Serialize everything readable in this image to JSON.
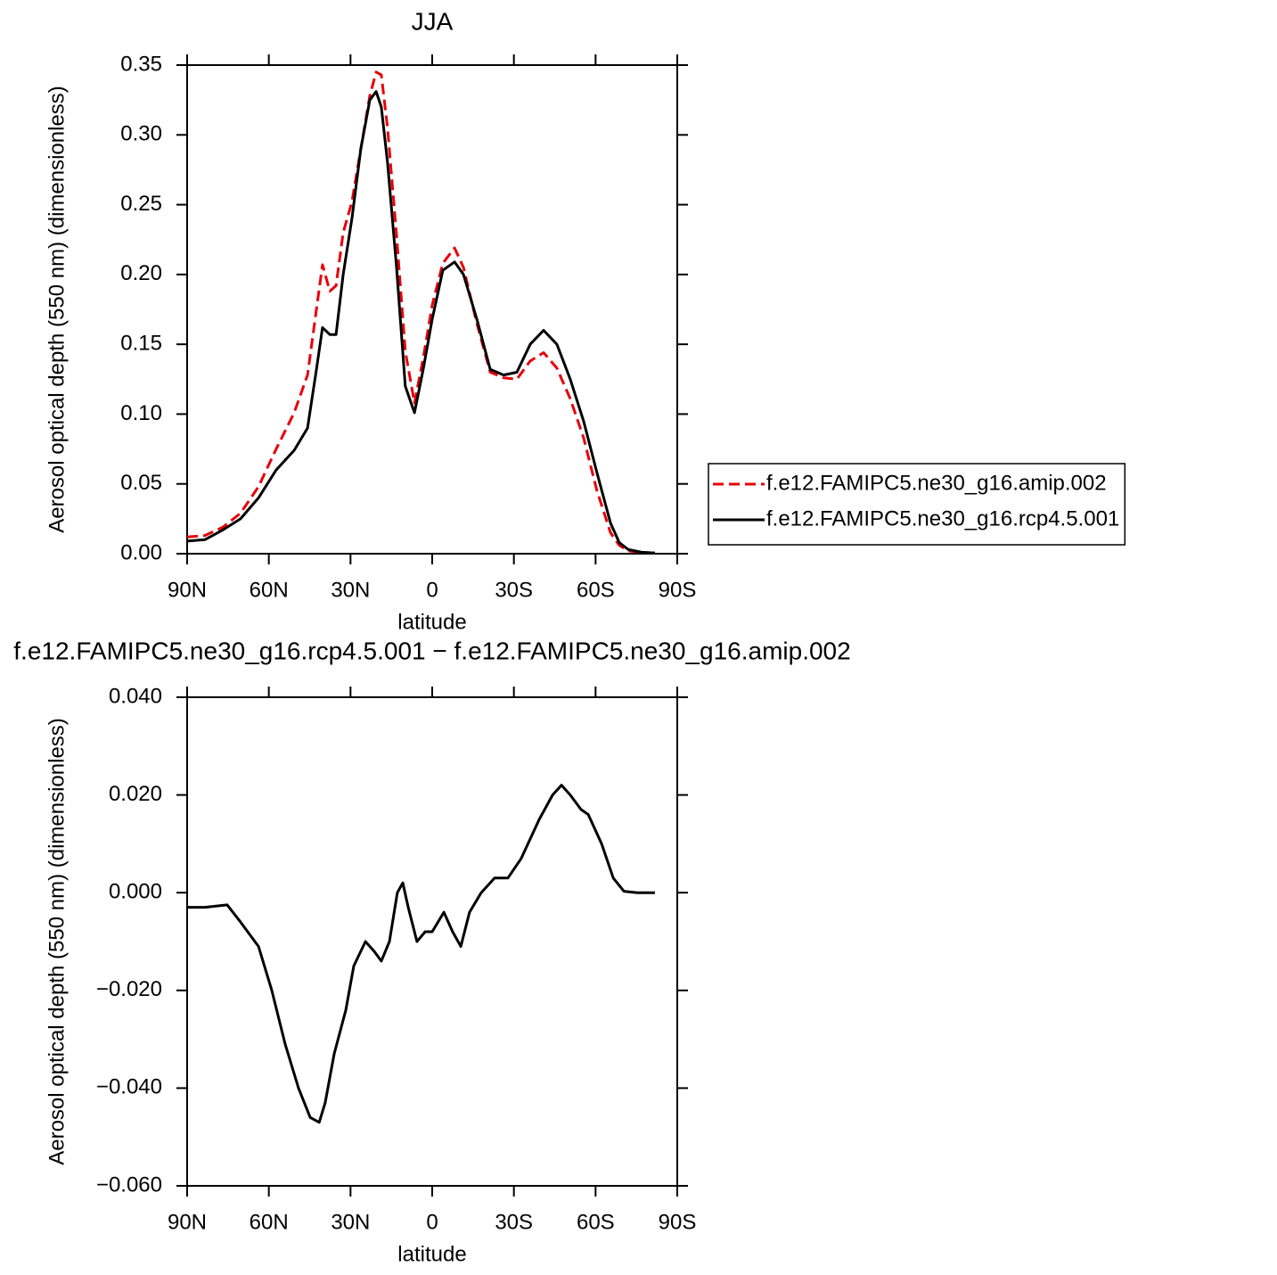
{
  "chart_data": [
    {
      "type": "line",
      "title": "JJA",
      "xlabel": "latitude",
      "ylabel": "Aerosol optical depth (550 nm) (dimensionless)",
      "xlim": [
        90,
        -90
      ],
      "xticks": [
        {
          "value": 90,
          "label": "90N"
        },
        {
          "value": 60,
          "label": "60N"
        },
        {
          "value": 30,
          "label": "30N"
        },
        0,
        {
          "value": -30,
          "label": "30S"
        },
        {
          "value": -60,
          "label": "60S"
        },
        {
          "value": -90,
          "label": "90S"
        }
      ],
      "ylim": [
        0,
        0.35
      ],
      "yticks": [
        {
          "value": 0,
          "label": "0.00"
        },
        0.05,
        {
          "value": 0.1,
          "label": "0.10"
        },
        0.15,
        {
          "value": 0.2,
          "label": "0.20"
        },
        0.25,
        {
          "value": 0.3,
          "label": "0.30"
        },
        0.35
      ],
      "legend": "right",
      "x": [
        90,
        83.5,
        76.9,
        70.4,
        63.8,
        57.3,
        50.7,
        45.8,
        42.5,
        40.3,
        37.6,
        35.3,
        32.7,
        29.5,
        26.2,
        22.9,
        20.6,
        18.7,
        16.4,
        13.1,
        9.9,
        6.5,
        3.3,
        0,
        -3.9,
        -8.2,
        -11.5,
        -16.4,
        -21.3,
        -26.2,
        -31.1,
        -36,
        -40.9,
        -45.8,
        -50.7,
        -55.6,
        -60.5,
        -65.5,
        -68.7,
        -72,
        -76.9,
        -81.8
      ],
      "series": [
        {
          "name": "f.e12.FAMIPC5.ne30_g16.amip.002",
          "color": "#e8000b",
          "dash": true,
          "values": [
            0.012,
            0.013,
            0.019,
            0.029,
            0.048,
            0.075,
            0.101,
            0.128,
            0.175,
            0.207,
            0.188,
            0.192,
            0.23,
            0.252,
            0.29,
            0.328,
            0.345,
            0.343,
            0.305,
            0.228,
            0.145,
            0.108,
            0.14,
            0.178,
            0.208,
            0.219,
            0.205,
            0.165,
            0.13,
            0.126,
            0.125,
            0.138,
            0.144,
            0.133,
            0.111,
            0.083,
            0.045,
            0.015,
            0.006,
            0.002,
            0.001,
            0.0005
          ]
        },
        {
          "name": "f.e12.FAMIPC5.ne30_g16.rcp4.5.001",
          "color": "#000000",
          "dash": false,
          "values": [
            0.009,
            0.01,
            0.017,
            0.025,
            0.04,
            0.06,
            0.074,
            0.09,
            0.132,
            0.162,
            0.157,
            0.157,
            0.2,
            0.24,
            0.29,
            0.325,
            0.331,
            0.32,
            0.28,
            0.205,
            0.12,
            0.101,
            0.132,
            0.168,
            0.203,
            0.209,
            0.2,
            0.168,
            0.132,
            0.128,
            0.13,
            0.15,
            0.16,
            0.15,
            0.125,
            0.095,
            0.058,
            0.022,
            0.008,
            0.003,
            0.001,
            0.0005
          ]
        }
      ]
    },
    {
      "type": "line",
      "title": "f.e12.FAMIPC5.ne30_g16.rcp4.5.001 − f.e12.FAMIPC5.ne30_g16.amip.002",
      "xlabel": "latitude",
      "ylabel": "Aerosol optical depth (550 nm) (dimensionless)",
      "xlim": [
        90,
        -90
      ],
      "xticks": [
        {
          "value": 90,
          "label": "90N"
        },
        {
          "value": 60,
          "label": "60N"
        },
        {
          "value": 30,
          "label": "30N"
        },
        0,
        {
          "value": -30,
          "label": "30S"
        },
        {
          "value": -60,
          "label": "60S"
        },
        {
          "value": -90,
          "label": "90S"
        }
      ],
      "ylim": [
        -0.06,
        0.04
      ],
      "yticks": [
        {
          "value": -0.06,
          "label": "−0.060"
        },
        {
          "value": -0.04,
          "label": "−0.040"
        },
        {
          "value": -0.02,
          "label": "−0.020"
        },
        {
          "value": 0,
          "label": "0.000"
        },
        {
          "value": 0.02,
          "label": "0.020"
        },
        {
          "value": 0.04,
          "label": "0.040"
        }
      ],
      "x": [
        90,
        83.5,
        75.3,
        70.4,
        63.8,
        58.9,
        54.0,
        49.1,
        44.8,
        41.5,
        39.3,
        36.0,
        31.7,
        28.8,
        24.5,
        21.3,
        18.7,
        15.7,
        12.8,
        10.8,
        8.8,
        5.6,
        2.6,
        0,
        -4.3,
        -7.5,
        -10.5,
        -13.7,
        -18.0,
        -22.9,
        -27.8,
        -32.7,
        -39.3,
        -44.2,
        -47.5,
        -50.7,
        -54.7,
        -57.3,
        -62.2,
        -66.5,
        -70.4,
        -75.3,
        -81.8
      ],
      "series": [
        {
          "color": "#000000",
          "values": [
            -0.003,
            -0.003,
            -0.0025,
            -0.006,
            -0.011,
            -0.02,
            -0.031,
            -0.04,
            -0.046,
            -0.047,
            -0.043,
            -0.033,
            -0.024,
            -0.015,
            -0.01,
            -0.012,
            -0.014,
            -0.01,
            0.0,
            0.002,
            -0.003,
            -0.01,
            -0.008,
            -0.008,
            -0.004,
            -0.008,
            -0.011,
            -0.004,
            0.0,
            0.003,
            0.003,
            0.007,
            0.015,
            0.02,
            0.022,
            0.02,
            0.017,
            0.016,
            0.01,
            0.003,
            0.0003,
            0.0,
            0.0
          ]
        }
      ]
    }
  ]
}
